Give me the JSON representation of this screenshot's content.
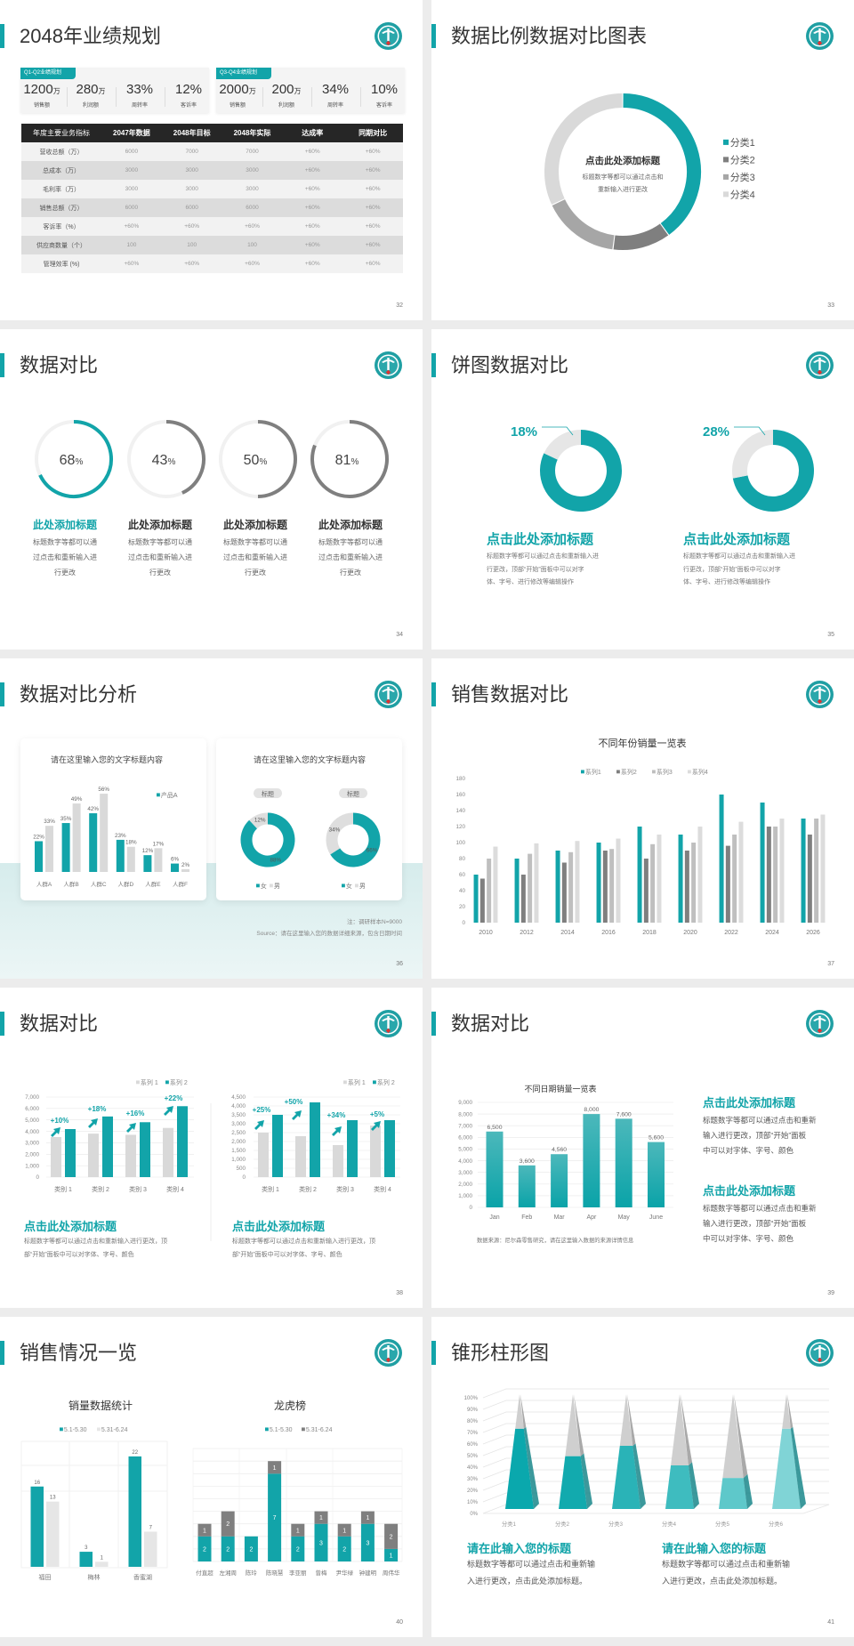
{
  "slides": [
    {
      "title": "2048年业绩规划",
      "page": "32"
    },
    {
      "title": "数据比例数据对比图表",
      "page": "33"
    },
    {
      "title": "数据对比",
      "page": "34"
    },
    {
      "title": "饼图数据对比",
      "page": "35"
    },
    {
      "title": "数据对比分析",
      "page": "36"
    },
    {
      "title": "销售数据对比",
      "page": "37"
    },
    {
      "title": "数据对比",
      "page": "38"
    },
    {
      "title": "数据对比",
      "page": "39"
    },
    {
      "title": "销售情况一览",
      "page": "40"
    },
    {
      "title": "锥形柱形图",
      "page": "41"
    }
  ],
  "colors": {
    "accent": "#12a4a9",
    "dark_gray": "#7f7f7f",
    "mid_gray": "#a6a6a6",
    "light_gray": "#d9d9d9",
    "lighter_gray": "#e6e6e6"
  },
  "icons": {
    "logo": "circular-emblem-logo"
  },
  "s32": {
    "panels": [
      {
        "tag": "Q1-Q2业绩规划",
        "stats": [
          {
            "value": "1200",
            "unit": "万",
            "label": "销售额"
          },
          {
            "value": "280",
            "unit": "万",
            "label": "利润额"
          },
          {
            "value": "33%",
            "unit": "",
            "label": "周转率"
          },
          {
            "value": "12%",
            "unit": "",
            "label": "客诉率"
          }
        ]
      },
      {
        "tag": "Q3-Q4业绩规划",
        "stats": [
          {
            "value": "2000",
            "unit": "万",
            "label": "销售额"
          },
          {
            "value": "200",
            "unit": "万",
            "label": "利润额"
          },
          {
            "value": "34%",
            "unit": "",
            "label": "周转率"
          },
          {
            "value": "10%",
            "unit": "",
            "label": "客诉率"
          }
        ]
      }
    ],
    "table": {
      "headers": [
        "年度主要业务指标",
        "2047年数据",
        "2048年目标",
        "2048年实际",
        "达成率",
        "同期对比"
      ],
      "rows": [
        [
          "营收总额（万）",
          "6000",
          "7000",
          "7000",
          "+60%",
          "+60%"
        ],
        [
          "总成本（万）",
          "3000",
          "3000",
          "3000",
          "+60%",
          "+60%"
        ],
        [
          "毛利率（万）",
          "3000",
          "3000",
          "3000",
          "+60%",
          "+60%"
        ],
        [
          "销售总额（万）",
          "6000",
          "6000",
          "6000",
          "+60%",
          "+60%"
        ],
        [
          "客诉率（%）",
          "+60%",
          "+60%",
          "+60%",
          "+60%",
          "+60%"
        ],
        [
          "供应商数量（个）",
          "100",
          "100",
          "100",
          "+60%",
          "+60%"
        ],
        [
          "管理效率 (%)",
          "+60%",
          "+60%",
          "+60%",
          "+60%",
          "+60%"
        ]
      ]
    }
  },
  "s33": {
    "center_title": "点击此处添加标题",
    "center_desc": [
      "标题数字等都可以通过点击和",
      "重新输入进行更改"
    ]
  },
  "s34": {
    "items": [
      {
        "value": 68,
        "unit": "%",
        "title": "此处添加标题",
        "desc": [
          "标题数字等都可以通",
          "过点击和重新输入进",
          "行更改"
        ]
      },
      {
        "value": 43,
        "unit": "%",
        "title": "此处添加标题",
        "desc": [
          "标题数字等都可以通",
          "过点击和重新输入进",
          "行更改"
        ]
      },
      {
        "value": 50,
        "unit": "%",
        "title": "此处添加标题",
        "desc": [
          "标题数字等都可以通",
          "过点击和重新输入进",
          "行更改"
        ]
      },
      {
        "value": 81,
        "unit": "%",
        "title": "此处添加标题",
        "desc": [
          "标题数字等都可以通",
          "过点击和重新输入进",
          "行更改"
        ]
      }
    ]
  },
  "s35": {
    "items": [
      {
        "title": "点击此处添加标题",
        "desc": [
          "标题数字等都可以通过点击和重新输入进",
          "行更改，顶部“开始”面板中可以对字",
          "体、字号、进行修改等编辑操作"
        ]
      },
      {
        "title": "点击此处添加标题",
        "desc": [
          "标题数字等都可以通过点击和重新输入进",
          "行更改，顶部“开始”面板中可以对字",
          "体、字号、进行修改等编辑操作"
        ]
      }
    ]
  },
  "s36": {
    "note": "注：调研样本N=9000",
    "source": "Source：请在这里输入您的数据详细来源，包含日期时间"
  },
  "s38": {
    "items": [
      {
        "title": "点击此处添加标题",
        "desc": [
          "标题数字等都可以通过点击和重新输入进行更改，顶",
          "部“开始”面板中可以对字体、字号、颜色"
        ]
      },
      {
        "title": "点击此处添加标题",
        "desc": [
          "标题数字等都可以通过点击和重新输入进行更改，顶",
          "部“开始”面板中可以对字体、字号、颜色"
        ]
      }
    ]
  },
  "s39": {
    "source": "数据来源：尼尔森零售研究，请在这里输入数据的来源详情信息",
    "items": [
      {
        "title": "点击此处添加标题",
        "desc": [
          "标题数字等都可以通过点击和重新",
          "输入进行更改，顶部“开始”面板",
          "中可以对字体、字号、颜色"
        ]
      },
      {
        "title": "点击此处添加标题",
        "desc": [
          "标题数字等都可以通过点击和重新",
          "输入进行更改，顶部“开始”面板",
          "中可以对字体、字号、颜色"
        ]
      }
    ]
  },
  "s41": {
    "items": [
      {
        "title": "请在此输入您的标题",
        "desc": [
          "标题数字等都可以通过点击和重新输",
          "入进行更改，点击此处添加标题。"
        ]
      },
      {
        "title": "请在此输入您的标题",
        "desc": [
          "标题数字等都可以通过点击和重新输",
          "入进行更改，点击此处添加标题。"
        ]
      }
    ]
  },
  "chart_data": [
    {
      "type": "pie",
      "donut": true,
      "categories": [
        "分类1",
        "分类2",
        "分类3",
        "分类4"
      ],
      "values": [
        40,
        12,
        16,
        32
      ],
      "legend": "right"
    },
    {
      "type": "pie",
      "donut": true,
      "charts": [
        {
          "label": "18%",
          "values": [
            82,
            18
          ]
        },
        {
          "label": "28%",
          "values": [
            72,
            28
          ]
        }
      ]
    },
    {
      "type": "bar",
      "title": "请在这里输入您的文字标题内容",
      "categories": [
        "人群A",
        "人群B",
        "人群C",
        "人群D",
        "人群E",
        "人群F"
      ],
      "series": [
        {
          "name": "产品A",
          "values": [
            22,
            35,
            42,
            23,
            12,
            6
          ]
        },
        {
          "values": [
            33,
            49,
            56,
            18,
            17,
            2
          ]
        }
      ],
      "unit": "%",
      "legend": "top-right"
    },
    {
      "type": "pie",
      "donut": true,
      "title": "请在这里输入您的文字标题内容",
      "legend_items": [
        "女",
        "男"
      ],
      "unit": "%",
      "charts": [
        {
          "tag": "标题",
          "values": [
            88,
            12
          ]
        },
        {
          "tag": "标题",
          "values": [
            66,
            34
          ]
        }
      ]
    },
    {
      "type": "bar",
      "title": "不同年份销量一览表",
      "categories": [
        "2010",
        "2012",
        "2014",
        "2016",
        "2018",
        "2020",
        "2022",
        "2024",
        "2026"
      ],
      "series": [
        {
          "name": "系列1",
          "values": [
            60,
            80,
            90,
            100,
            120,
            110,
            160,
            150,
            130
          ]
        },
        {
          "name": "系列2",
          "values": [
            55,
            60,
            75,
            90,
            80,
            90,
            96,
            120,
            110
          ]
        },
        {
          "name": "系列3",
          "values": [
            80,
            86,
            88,
            92,
            98,
            100,
            110,
            120,
            130
          ]
        },
        {
          "name": "系列4",
          "values": [
            95,
            99,
            102,
            105,
            110,
            120,
            126,
            130,
            135
          ]
        }
      ],
      "ylim": [
        0,
        180
      ],
      "yticks": [
        0,
        20,
        40,
        60,
        80,
        100,
        120,
        140,
        160,
        180
      ],
      "legend": "top"
    },
    {
      "type": "bar",
      "categories": [
        "类别 1",
        "类别 2",
        "类别 3",
        "类别 4"
      ],
      "series": [
        {
          "name": "系列 1",
          "values": [
            3500,
            3800,
            3700,
            4300
          ]
        },
        {
          "name": "系列 2",
          "values": [
            4200,
            5300,
            4800,
            6200
          ]
        }
      ],
      "ylim": [
        0,
        7000
      ],
      "yticks": [
        0,
        1000,
        2000,
        3000,
        4000,
        5000,
        6000,
        7000
      ],
      "annotations": [
        "+10%",
        "+18%",
        "+16%",
        "+22%"
      ],
      "legend": "top-right"
    },
    {
      "type": "bar",
      "categories": [
        "类别 1",
        "类别 2",
        "类别 3",
        "类别 4"
      ],
      "series": [
        {
          "name": "系列 1",
          "values": [
            2500,
            2300,
            1800,
            2900
          ]
        },
        {
          "name": "系列 2",
          "values": [
            3500,
            4200,
            3200,
            3200
          ]
        }
      ],
      "ylim": [
        0,
        4500
      ],
      "yticks": [
        0,
        500,
        1000,
        1500,
        2000,
        2500,
        3000,
        3500,
        4000,
        4500
      ],
      "annotations": [
        "+25%",
        "+50%",
        "+34%",
        "+5%"
      ],
      "legend": "top-right"
    },
    {
      "type": "bar",
      "title": "不同日期销量一览表",
      "categories": [
        "Jan",
        "Feb",
        "Mar",
        "Apr",
        "May",
        "June"
      ],
      "values": [
        6500,
        3600,
        4560,
        8000,
        7600,
        5600
      ],
      "ylim": [
        0,
        9000
      ],
      "yticks": [
        0,
        1000,
        2000,
        3000,
        4000,
        5000,
        6000,
        7000,
        8000,
        9000
      ]
    },
    {
      "type": "bar",
      "title": "销量数据统计",
      "categories": [
        "福田",
        "梅林",
        "香蜜湖"
      ],
      "series": [
        {
          "name": "5.1-5.30",
          "values": [
            16,
            3,
            22
          ]
        },
        {
          "name": "5.31-6.24",
          "values": [
            13,
            1,
            7
          ]
        }
      ],
      "legend": "top"
    },
    {
      "type": "bar",
      "stacked": true,
      "title": "龙虎榜",
      "categories": [
        "付直超",
        "左湘周",
        "陈玲",
        "陈晓慧",
        "李亚丽",
        "曾梅",
        "尹华绿",
        "钟建明",
        "周伟华"
      ],
      "series": [
        {
          "name": "5.1-5.30",
          "values": [
            2,
            2,
            2,
            7,
            2,
            3,
            2,
            3,
            1
          ]
        },
        {
          "name": "5.31-6.24",
          "values": [
            1,
            2,
            0,
            1,
            1,
            1,
            1,
            1,
            2
          ]
        }
      ],
      "legend": "top"
    },
    {
      "type": "bar",
      "shape": "cone",
      "categories": [
        "分类1",
        "分类2",
        "分类3",
        "分类4",
        "分类5",
        "分类6"
      ],
      "values": [
        70,
        46,
        55,
        38,
        27,
        70
      ],
      "ylim": [
        0,
        100
      ],
      "yticks": [
        0,
        10,
        20,
        30,
        40,
        50,
        60,
        70,
        80,
        90,
        100
      ],
      "unit": "%"
    }
  ]
}
